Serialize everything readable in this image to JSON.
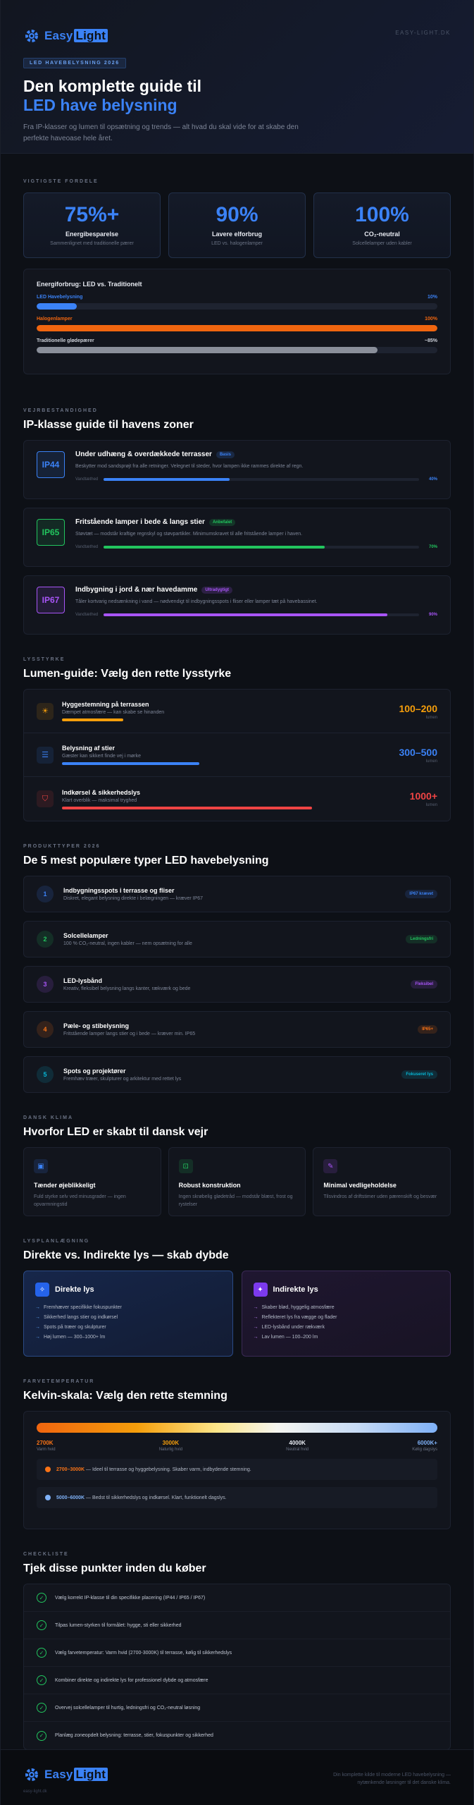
{
  "brand": {
    "name_part1": "Easy",
    "name_part2": "Light",
    "url": "EASY-LIGHT.DK"
  },
  "hero": {
    "tag": "LED HAVEBELYSNING 2026",
    "title_line1": "Den komplette guide til",
    "title_line2": "LED have belysning",
    "intro": "Fra IP-klasser og lumen til opsætning og trends — alt hvad du skal vide for at skabe den perfekte haveoase hele året."
  },
  "benefits": {
    "eyebrow": "VIGTIGSTE FORDELE",
    "stats": [
      {
        "value": "75%+",
        "label": "Energibesparelse",
        "sub": "Sammenlignet med traditionelle pærer"
      },
      {
        "value": "90%",
        "label": "Lavere elforbrug",
        "sub": "LED vs. halogenlamper"
      },
      {
        "value": "100%",
        "label": "CO₂-neutral",
        "sub": "Solcellelamper uden kabler"
      }
    ],
    "energy": {
      "title": "Energiforbrug: LED vs. Traditionelt",
      "rows": [
        {
          "label": "LED Havebelysning",
          "value_text": "10%",
          "fraction": 0.1,
          "color": "#3b82f6"
        },
        {
          "label": "Halogenlamper",
          "value_text": "100%",
          "fraction": 1.0,
          "color": "#f0650f"
        },
        {
          "label": "Traditionelle glødepærer",
          "value_text": "~85%",
          "fraction": 0.85,
          "color": "#8a8f9a"
        }
      ]
    }
  },
  "ip": {
    "eyebrow": "VEJRBESTANDIGHED",
    "title": "IP-klasse guide til havens zoner",
    "items": [
      {
        "code": "IP44",
        "title": "Under udhæng & overdækkede terrasser",
        "pill": "Basis",
        "desc": "Beskytter mod sandsprøjt fra alle retninger. Velegnet til steder, hvor lampen ikke rammes direkte af regn.",
        "bar_label": "Vandtæthed",
        "pct_text": "40%",
        "fraction": 0.4,
        "color": "#3b82f6"
      },
      {
        "code": "IP65",
        "title": "Fritstående lamper i bede & langs stier",
        "pill": "Anbefalet",
        "desc": "Støvtæt — modstår kraftige regnskyl og støvpartikler. Minimumskravet til alle fritstående lamper i haven.",
        "bar_label": "Vandtæthed",
        "pct_text": "70%",
        "fraction": 0.7,
        "color": "#22c55e"
      },
      {
        "code": "IP67",
        "title": "Indbygning i jord & nær havedamme",
        "pill": "Ultradygtigt",
        "desc": "Tåler kortvarig nedsænkning i vand — nødvendigt til indbygningsspots i fliser eller lamper tæt på havebassinet.",
        "bar_label": "Vandtæthed",
        "pct_text": "90%",
        "fraction": 0.9,
        "color": "#a855f7"
      }
    ]
  },
  "lumen": {
    "eyebrow": "LYSSTYRKE",
    "title": "Lumen-guide: Vælg den rette lysstyrke",
    "items": [
      {
        "icon": "sun-icon",
        "glyph": "☀",
        "name": "Hyggestemning på terrassen",
        "desc": "Dæmpet atmosfære — kan skabe se hinanden",
        "value": "100–200",
        "unit": "lumen",
        "fraction": 0.2,
        "color": "#f59e0b"
      },
      {
        "icon": "path-icon",
        "glyph": "☰",
        "name": "Belysning af stier",
        "desc": "Gæster kan sikkert finde vej i mørke",
        "value": "300–500",
        "unit": "lumen",
        "fraction": 0.45,
        "color": "#3b82f6"
      },
      {
        "icon": "shield-icon",
        "glyph": "⛉",
        "name": "Indkørsel & sikkerhedslys",
        "desc": "Klart overblik — maksimal tryghed",
        "value": "1000+",
        "unit": "lumen",
        "fraction": 0.82,
        "color": "#ef4444"
      }
    ]
  },
  "types": {
    "eyebrow": "PRODUKTTYPER 2026",
    "title": "De 5 mest populære typer LED havebelysning",
    "items": [
      {
        "num": "1",
        "name": "Indbygningsspots i terrasse og fliser",
        "desc": "Diskret, elegant belysning direkte i belægningen — kræver IP67",
        "pill": "IP67 krævet",
        "color": "#3b82f6"
      },
      {
        "num": "2",
        "name": "Solcellelamper",
        "desc": "100 % CO₂-neutral, ingen kabler — nem opsætning for alle",
        "pill": "Ledningsfri",
        "color": "#22c55e"
      },
      {
        "num": "3",
        "name": "LED-lysbånd",
        "desc": "Kreativ, fleksibel belysning langs kanter, rækværk og bede",
        "pill": "Fleksibel",
        "color": "#a855f7"
      },
      {
        "num": "4",
        "name": "Pæle- og stibelysning",
        "desc": "Fritstående lamper langs stier og i bede — kræver min. IP65",
        "pill": "IP65+",
        "color": "#f97316"
      },
      {
        "num": "5",
        "name": "Spots og projektører",
        "desc": "Fremhæv træer, skulpturer og arkitektur med rettet lys",
        "pill": "Fokuseret lys",
        "color": "#06b6d4"
      }
    ]
  },
  "climate": {
    "eyebrow": "DANSK KLIMA",
    "title": "Hvorfor LED er skabt til dansk vejr",
    "items": [
      {
        "icon": "chip-icon",
        "glyph": "▣",
        "name": "Tænder øjeblikkeligt",
        "desc": "Fuld styrke selv ved minusgrader — ingen opvarmningstid",
        "color": "#3b82f6"
      },
      {
        "icon": "box-icon",
        "glyph": "⊡",
        "name": "Robust konstruktion",
        "desc": "Ingen skrøbelig glødetråd — modstår blæst, frost og rystelser",
        "color": "#22c55e"
      },
      {
        "icon": "wrench-icon",
        "glyph": "✎",
        "name": "Minimal vedligeholdelse",
        "desc": "Tilsvindros af driftstimer uden pærenskift og besvær",
        "color": "#a855f7"
      }
    ]
  },
  "planning": {
    "eyebrow": "LYSPLANLÆGNING",
    "title": "Direkte vs. Indirekte lys — skab dybde",
    "direct": {
      "title": "Direkte lys",
      "items": [
        "Fremhæver specifikke fokuspunkter",
        "Sikkerhed langs stier og indkørsel",
        "Spots på træer og skulpturer",
        "Høj lumen — 300–1000+ lm"
      ]
    },
    "indirect": {
      "title": "Indirekte lys",
      "items": [
        "Skaber blød, hyggelig atmosfære",
        "Reflekteret lys fra vægge og flader",
        "LED-lysbånd under rækværk",
        "Lav lumen — 100–200 lm"
      ]
    }
  },
  "kelvin": {
    "eyebrow": "FARVETEMPERATUR",
    "title": "Kelvin-skala: Vælg den rette stemning",
    "ticks": [
      {
        "value": "2700K",
        "desc": "Varm hvid",
        "color": "#f97316"
      },
      {
        "value": "3000K",
        "desc": "Naturlig hvid",
        "color": "#f59e0b"
      },
      {
        "value": "4000K",
        "desc": "Neutral hvid",
        "color": "#e8ebf2"
      },
      {
        "value": "6000K+",
        "desc": "Kølig dagslys",
        "color": "#7fb1f7"
      }
    ],
    "notes": [
      {
        "range": "2700–3000K",
        "text": " — Ideel til terrasse og hyggebelysning. Skaber varm, indbydende stemning.",
        "color": "#f97316"
      },
      {
        "range": "5000–6000K",
        "text": " — Bedst til sikkerhedslys og indkørsel. Klart, funktionelt dagslys.",
        "color": "#7fb1f7"
      }
    ]
  },
  "checklist": {
    "eyebrow": "CHECKLISTE",
    "title": "Tjek disse punkter inden du køber",
    "items": [
      "Vælg korrekt IP-klasse til din specifikke placering (IP44 / IP65 / IP67)",
      "Tilpas lumen-styrken til formålet: hygge, sti eller sikkerhed",
      "Vælg farvetemperatur: Varm hvid (2700-3000K) til terrasse, kølig til sikkerhedslys",
      "Kombiner direkte og indirekte lys for professionel dybde og atmosfære",
      "Overvej solcellelamper til hurtig, ledningsfri og CO₂-neutral løsning",
      "Planlæg zoneopdelt belysning: terrasse, stier, fokuspunkter og sikkerhed"
    ]
  },
  "footer": {
    "url": "easy-light.dk",
    "text_line1": "Din komplette kilde til moderne LED havebelysning —",
    "text_line2": "nytænkende løsninger til det danske klima."
  }
}
